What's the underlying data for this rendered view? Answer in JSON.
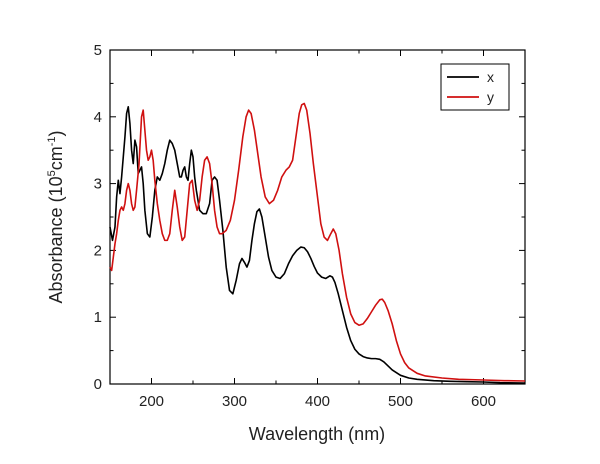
{
  "chart_data": {
    "type": "line",
    "xlabel": "Wavelength (nm)",
    "ylabel": {
      "text_before": "Absorbance (10",
      "sup1": "5",
      "text_mid": "cm",
      "sup2": "-1",
      "text_after": ")"
    },
    "xlim": [
      150,
      650
    ],
    "ylim": [
      0,
      5
    ],
    "xticks": [
      200,
      300,
      400,
      500,
      600
    ],
    "yticks": [
      0,
      1,
      2,
      3,
      4,
      5
    ],
    "grid": false,
    "legend_position": "top-right",
    "series": [
      {
        "name": "x",
        "color": "#000000",
        "points": [
          [
            150,
            2.35
          ],
          [
            153,
            2.15
          ],
          [
            156,
            2.35
          ],
          [
            158,
            2.8
          ],
          [
            160,
            3.05
          ],
          [
            162,
            2.85
          ],
          [
            164,
            3.1
          ],
          [
            166,
            3.4
          ],
          [
            168,
            3.7
          ],
          [
            170,
            4.05
          ],
          [
            172,
            4.15
          ],
          [
            174,
            3.9
          ],
          [
            176,
            3.5
          ],
          [
            178,
            3.3
          ],
          [
            180,
            3.65
          ],
          [
            182,
            3.55
          ],
          [
            184,
            3.15
          ],
          [
            186,
            3.2
          ],
          [
            188,
            3.25
          ],
          [
            190,
            3.0
          ],
          [
            192,
            2.6
          ],
          [
            195,
            2.25
          ],
          [
            198,
            2.2
          ],
          [
            201,
            2.5
          ],
          [
            204,
            2.9
          ],
          [
            207,
            3.1
          ],
          [
            210,
            3.05
          ],
          [
            213,
            3.15
          ],
          [
            216,
            3.3
          ],
          [
            219,
            3.5
          ],
          [
            222,
            3.65
          ],
          [
            225,
            3.6
          ],
          [
            228,
            3.5
          ],
          [
            231,
            3.3
          ],
          [
            234,
            3.1
          ],
          [
            236,
            3.1
          ],
          [
            238,
            3.2
          ],
          [
            240,
            3.25
          ],
          [
            242,
            3.1
          ],
          [
            244,
            3.05
          ],
          [
            246,
            3.3
          ],
          [
            248,
            3.5
          ],
          [
            250,
            3.4
          ],
          [
            252,
            3.1
          ],
          [
            254,
            2.9
          ],
          [
            256,
            2.75
          ],
          [
            258,
            2.6
          ],
          [
            262,
            2.55
          ],
          [
            266,
            2.55
          ],
          [
            270,
            2.7
          ],
          [
            273,
            3.05
          ],
          [
            276,
            3.1
          ],
          [
            279,
            3.05
          ],
          [
            282,
            2.75
          ],
          [
            286,
            2.3
          ],
          [
            290,
            1.75
          ],
          [
            294,
            1.4
          ],
          [
            298,
            1.35
          ],
          [
            302,
            1.55
          ],
          [
            306,
            1.8
          ],
          [
            309,
            1.88
          ],
          [
            312,
            1.82
          ],
          [
            315,
            1.75
          ],
          [
            318,
            1.85
          ],
          [
            321,
            2.15
          ],
          [
            324,
            2.4
          ],
          [
            327,
            2.58
          ],
          [
            330,
            2.62
          ],
          [
            333,
            2.5
          ],
          [
            337,
            2.2
          ],
          [
            341,
            1.9
          ],
          [
            345,
            1.7
          ],
          [
            350,
            1.6
          ],
          [
            355,
            1.58
          ],
          [
            360,
            1.65
          ],
          [
            365,
            1.8
          ],
          [
            370,
            1.92
          ],
          [
            375,
            2.0
          ],
          [
            380,
            2.05
          ],
          [
            384,
            2.04
          ],
          [
            388,
            1.98
          ],
          [
            392,
            1.88
          ],
          [
            396,
            1.76
          ],
          [
            400,
            1.66
          ],
          [
            405,
            1.6
          ],
          [
            410,
            1.58
          ],
          [
            415,
            1.62
          ],
          [
            418,
            1.6
          ],
          [
            421,
            1.52
          ],
          [
            425,
            1.35
          ],
          [
            430,
            1.1
          ],
          [
            435,
            0.85
          ],
          [
            440,
            0.65
          ],
          [
            445,
            0.52
          ],
          [
            450,
            0.45
          ],
          [
            455,
            0.41
          ],
          [
            460,
            0.39
          ],
          [
            465,
            0.38
          ],
          [
            470,
            0.38
          ],
          [
            475,
            0.37
          ],
          [
            480,
            0.33
          ],
          [
            485,
            0.27
          ],
          [
            490,
            0.21
          ],
          [
            500,
            0.13
          ],
          [
            510,
            0.09
          ],
          [
            520,
            0.07
          ],
          [
            540,
            0.05
          ],
          [
            560,
            0.04
          ],
          [
            580,
            0.035
          ],
          [
            600,
            0.03
          ],
          [
            620,
            0.02
          ],
          [
            650,
            0.015
          ]
        ]
      },
      {
        "name": "y",
        "color": "#d01010",
        "points": [
          [
            150,
            1.75
          ],
          [
            152,
            1.7
          ],
          [
            154,
            1.9
          ],
          [
            156,
            2.1
          ],
          [
            158,
            2.25
          ],
          [
            160,
            2.45
          ],
          [
            162,
            2.6
          ],
          [
            164,
            2.65
          ],
          [
            166,
            2.6
          ],
          [
            168,
            2.7
          ],
          [
            170,
            2.9
          ],
          [
            172,
            3.0
          ],
          [
            174,
            2.9
          ],
          [
            176,
            2.7
          ],
          [
            178,
            2.6
          ],
          [
            180,
            2.65
          ],
          [
            182,
            2.9
          ],
          [
            185,
            3.3
          ],
          [
            188,
            4.0
          ],
          [
            190,
            4.1
          ],
          [
            192,
            3.8
          ],
          [
            194,
            3.5
          ],
          [
            196,
            3.35
          ],
          [
            198,
            3.4
          ],
          [
            200,
            3.5
          ],
          [
            202,
            3.35
          ],
          [
            204,
            3.05
          ],
          [
            207,
            2.7
          ],
          [
            210,
            2.45
          ],
          [
            213,
            2.25
          ],
          [
            216,
            2.15
          ],
          [
            219,
            2.15
          ],
          [
            222,
            2.25
          ],
          [
            225,
            2.6
          ],
          [
            228,
            2.9
          ],
          [
            231,
            2.65
          ],
          [
            234,
            2.35
          ],
          [
            237,
            2.15
          ],
          [
            240,
            2.2
          ],
          [
            243,
            2.6
          ],
          [
            246,
            3.0
          ],
          [
            249,
            3.05
          ],
          [
            252,
            2.75
          ],
          [
            255,
            2.6
          ],
          [
            258,
            2.75
          ],
          [
            261,
            3.1
          ],
          [
            264,
            3.35
          ],
          [
            267,
            3.4
          ],
          [
            270,
            3.3
          ],
          [
            273,
            3.0
          ],
          [
            276,
            2.6
          ],
          [
            279,
            2.35
          ],
          [
            282,
            2.25
          ],
          [
            285,
            2.25
          ],
          [
            290,
            2.3
          ],
          [
            295,
            2.45
          ],
          [
            300,
            2.75
          ],
          [
            305,
            3.2
          ],
          [
            310,
            3.7
          ],
          [
            314,
            4.0
          ],
          [
            317,
            4.1
          ],
          [
            320,
            4.05
          ],
          [
            324,
            3.8
          ],
          [
            328,
            3.45
          ],
          [
            332,
            3.1
          ],
          [
            337,
            2.8
          ],
          [
            342,
            2.7
          ],
          [
            347,
            2.75
          ],
          [
            352,
            2.9
          ],
          [
            357,
            3.1
          ],
          [
            362,
            3.2
          ],
          [
            366,
            3.25
          ],
          [
            370,
            3.35
          ],
          [
            374,
            3.7
          ],
          [
            378,
            4.05
          ],
          [
            381,
            4.18
          ],
          [
            384,
            4.2
          ],
          [
            387,
            4.1
          ],
          [
            391,
            3.75
          ],
          [
            395,
            3.3
          ],
          [
            400,
            2.8
          ],
          [
            404,
            2.4
          ],
          [
            408,
            2.2
          ],
          [
            412,
            2.15
          ],
          [
            416,
            2.25
          ],
          [
            419,
            2.32
          ],
          [
            422,
            2.25
          ],
          [
            426,
            2.0
          ],
          [
            430,
            1.65
          ],
          [
            435,
            1.3
          ],
          [
            440,
            1.05
          ],
          [
            445,
            0.92
          ],
          [
            450,
            0.88
          ],
          [
            455,
            0.9
          ],
          [
            460,
            0.98
          ],
          [
            465,
            1.08
          ],
          [
            470,
            1.18
          ],
          [
            475,
            1.26
          ],
          [
            478,
            1.27
          ],
          [
            481,
            1.22
          ],
          [
            485,
            1.1
          ],
          [
            490,
            0.9
          ],
          [
            495,
            0.65
          ],
          [
            500,
            0.45
          ],
          [
            505,
            0.32
          ],
          [
            510,
            0.24
          ],
          [
            520,
            0.16
          ],
          [
            530,
            0.12
          ],
          [
            550,
            0.09
          ],
          [
            570,
            0.07
          ],
          [
            600,
            0.06
          ],
          [
            625,
            0.05
          ],
          [
            650,
            0.045
          ]
        ]
      }
    ]
  }
}
